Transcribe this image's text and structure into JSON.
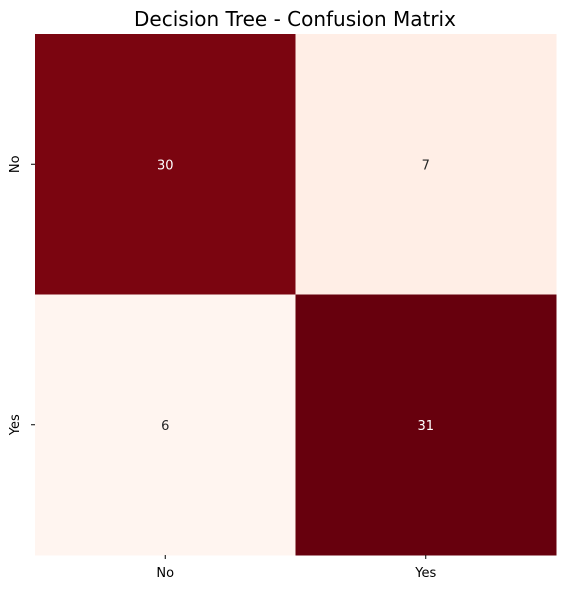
{
  "chart_data": {
    "type": "heatmap",
    "title": "Decision Tree - Confusion Matrix",
    "xlabel": "",
    "ylabel": "",
    "x_tick_labels": [
      "No",
      "Yes"
    ],
    "y_tick_labels": [
      "No",
      "Yes"
    ],
    "values": [
      [
        30,
        7
      ],
      [
        6,
        31
      ]
    ],
    "colormap": "Reds",
    "colorbar": false,
    "colors": {
      "low": "#fff5f0",
      "high": "#67000d",
      "text_dark": "#262626",
      "text_light": "#ffffff"
    }
  }
}
